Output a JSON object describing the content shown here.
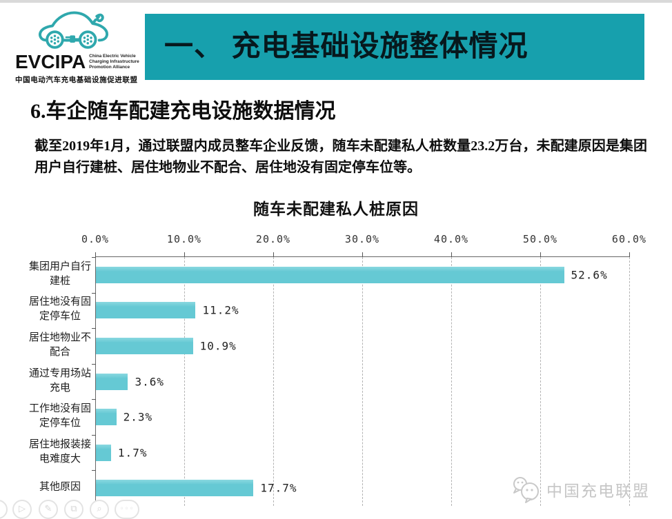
{
  "logo": {
    "acronym": "EVCIPA",
    "english_lines": [
      "China Electric Vehicle",
      "Charging Infrastructure",
      "Promotion Alliance"
    ],
    "chinese": "中国电动汽车充电基础设施促进联盟",
    "teal": "#2FA8AD"
  },
  "banner": {
    "title": "一、 充电基础设施整体情况",
    "bg": "#17A0AD"
  },
  "section": {
    "title": "6.车企随车配建充电设施数据情况"
  },
  "body": {
    "paragraph": "截至2019年1月，通过联盟内成员整车企业反馈，随车未配建私人桩数量23.2万台，未配建原因是集团用户自行建桩、居住地物业不配合、居住地没有固定停车位等。"
  },
  "chart_data": {
    "type": "bar",
    "orientation": "horizontal",
    "title": "随车未配建私人桩原因",
    "categories": [
      "集团用户自行建桩",
      "居住地没有固定停车位",
      "居住地物业不配合",
      "通过专用场站充电",
      "工作地没有固定停车位",
      "居住地报装接电难度大",
      "其他原因"
    ],
    "category_lines": [
      [
        "集团用户自行",
        "建桩"
      ],
      [
        "居住地没有固",
        "定停车位"
      ],
      [
        "居住地物业不",
        "配合"
      ],
      [
        "通过专用场站",
        "充电"
      ],
      [
        "工作地没有固",
        "定停车位"
      ],
      [
        "居住地报装接",
        "电难度大"
      ],
      [
        "其他原因"
      ]
    ],
    "values": [
      52.6,
      11.2,
      10.9,
      3.6,
      2.3,
      1.7,
      17.7
    ],
    "value_labels": [
      "52.6%",
      "11.2%",
      "10.9%",
      "3.6%",
      "2.3%",
      "1.7%",
      "17.7%"
    ],
    "x_ticks": [
      "0.0%",
      "10.0%",
      "20.0%",
      "30.0%",
      "40.0%",
      "50.0%",
      "60.0%"
    ],
    "xlim": [
      0,
      60
    ],
    "grid": "dashed-vertical",
    "legend": "none",
    "bar_color": "#65C9D4"
  },
  "watermark": {
    "text": "中国充电联盟",
    "color": "#c6c6c6"
  },
  "toolbar": {
    "icons": [
      {
        "name": "partial-icon",
        "glyph": ""
      },
      {
        "name": "play-icon",
        "glyph": "▷"
      },
      {
        "name": "pencil-icon",
        "glyph": "✎"
      },
      {
        "name": "copy-icon",
        "glyph": "⧉"
      },
      {
        "name": "zoom-icon",
        "glyph": "⌕"
      },
      {
        "name": "more-icon",
        "glyph": "◦◦◦"
      }
    ]
  }
}
